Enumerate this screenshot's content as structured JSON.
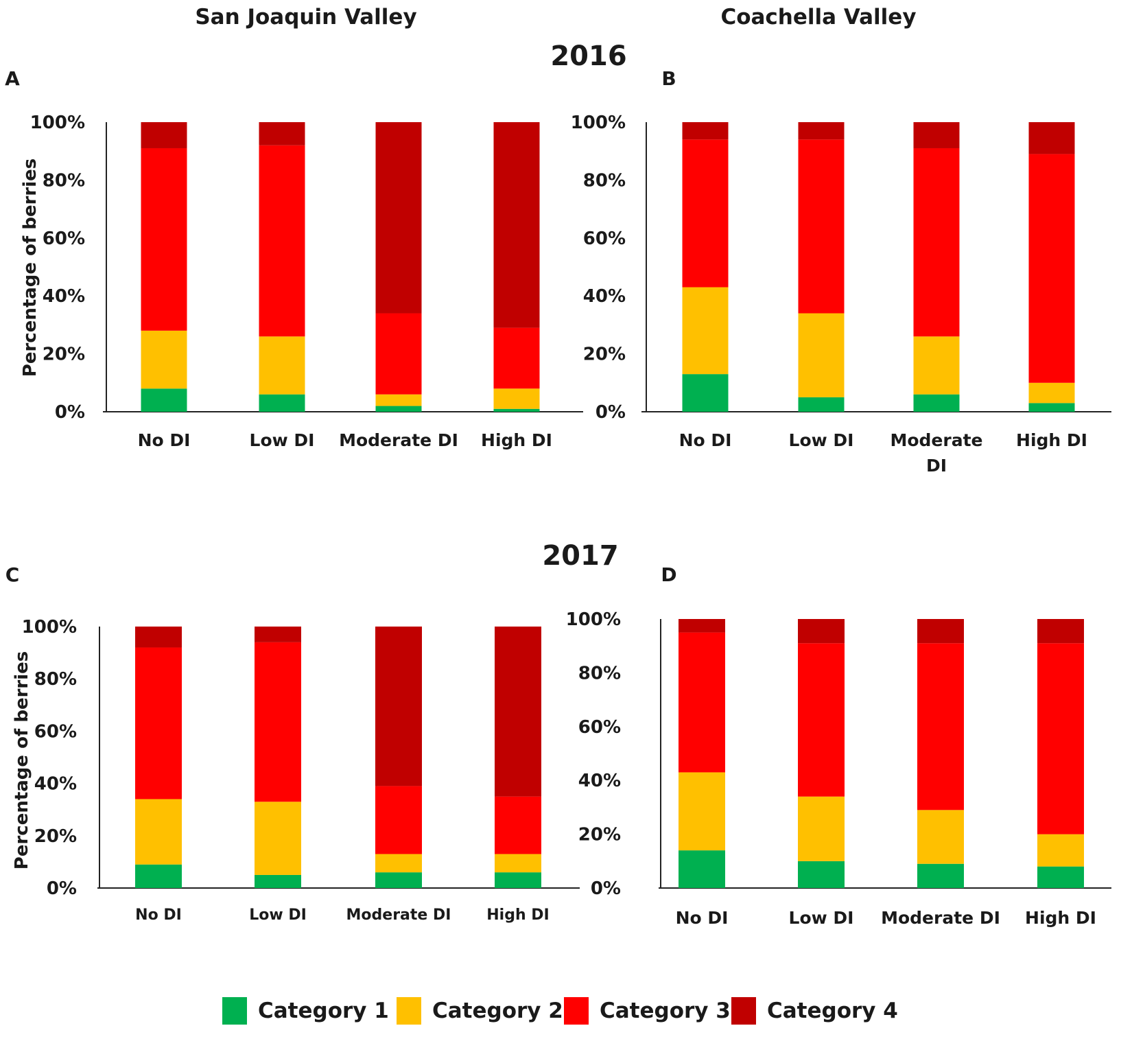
{
  "figure": {
    "column_titles": [
      "San Joaquin Valley",
      "Coachella Valley"
    ],
    "year_titles": [
      "2016",
      "2017"
    ]
  },
  "legend": {
    "items": [
      {
        "label": "Category 1",
        "color": "#00b050"
      },
      {
        "label": "Category 2",
        "color": "#ffc000"
      },
      {
        "label": "Category 3",
        "color": "#ff0000"
      },
      {
        "label": "Category 4",
        "color": "#c00000"
      }
    ]
  },
  "chart_data": [
    {
      "type": "bar",
      "stacked": true,
      "panel": "A",
      "title": "San Joaquin Valley 2016",
      "ylabel": "Percentage of berries",
      "ylim": [
        0,
        100
      ],
      "yticks": [
        "0%",
        "20%",
        "40%",
        "60%",
        "80%",
        "100%"
      ],
      "categories": [
        "No DI",
        "Low DI",
        "Moderate DI",
        "High DI"
      ],
      "series": [
        {
          "name": "Category 1",
          "values": [
            8,
            6,
            2,
            1
          ]
        },
        {
          "name": "Category 2",
          "values": [
            20,
            20,
            4,
            7
          ]
        },
        {
          "name": "Category 3",
          "values": [
            63,
            66,
            28,
            21
          ]
        },
        {
          "name": "Category 4",
          "values": [
            9,
            8,
            66,
            71
          ]
        }
      ]
    },
    {
      "type": "bar",
      "stacked": true,
      "panel": "B",
      "title": "Coachella Valley 2016",
      "ylabel": "",
      "ylim": [
        0,
        100
      ],
      "yticks": [
        "0%",
        "20%",
        "40%",
        "60%",
        "80%",
        "100%"
      ],
      "categories": [
        "No DI",
        "Low DI",
        "Moderate DI",
        "High DI"
      ],
      "series": [
        {
          "name": "Category 1",
          "values": [
            13,
            5,
            6,
            3
          ]
        },
        {
          "name": "Category 2",
          "values": [
            30,
            29,
            20,
            7
          ]
        },
        {
          "name": "Category 3",
          "values": [
            51,
            60,
            65,
            79
          ]
        },
        {
          "name": "Category 4",
          "values": [
            6,
            6,
            9,
            11
          ]
        }
      ]
    },
    {
      "type": "bar",
      "stacked": true,
      "panel": "C",
      "title": "San Joaquin Valley 2017",
      "ylabel": "Percentage of berries",
      "ylim": [
        0,
        100
      ],
      "yticks": [
        "0%",
        "20%",
        "40%",
        "60%",
        "80%",
        "100%"
      ],
      "categories": [
        "No DI",
        "Low DI",
        "Moderate DI",
        "High DI"
      ],
      "series": [
        {
          "name": "Category 1",
          "values": [
            9,
            5,
            6,
            6
          ]
        },
        {
          "name": "Category 2",
          "values": [
            25,
            28,
            7,
            7
          ]
        },
        {
          "name": "Category 3",
          "values": [
            58,
            61,
            26,
            22
          ]
        },
        {
          "name": "Category 4",
          "values": [
            8,
            6,
            61,
            65
          ]
        }
      ]
    },
    {
      "type": "bar",
      "stacked": true,
      "panel": "D",
      "title": "Coachella Valley 2017",
      "ylabel": "",
      "ylim": [
        0,
        100
      ],
      "yticks": [
        "0%",
        "20%",
        "40%",
        "60%",
        "80%",
        "100%"
      ],
      "categories": [
        "No DI",
        "Low DI",
        "Moderate DI",
        "High DI"
      ],
      "series": [
        {
          "name": "Category 1",
          "values": [
            14,
            10,
            9,
            8
          ]
        },
        {
          "name": "Category 2",
          "values": [
            29,
            24,
            20,
            12
          ]
        },
        {
          "name": "Category 3",
          "values": [
            52,
            57,
            62,
            71
          ]
        },
        {
          "name": "Category 4",
          "values": [
            5,
            9,
            9,
            9
          ]
        }
      ]
    }
  ]
}
